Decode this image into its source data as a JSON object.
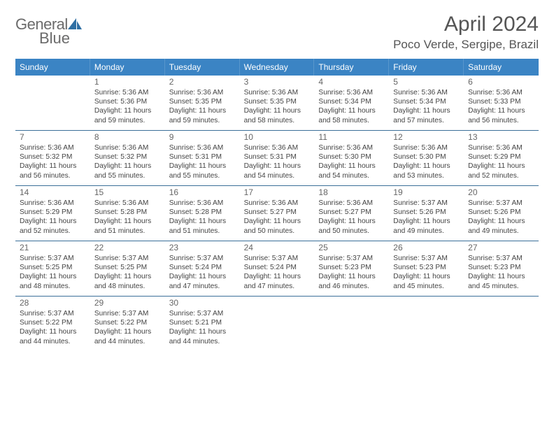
{
  "logo": {
    "general": "General",
    "blue": "Blue"
  },
  "title": "April 2024",
  "subtitle": "Poco Verde, Sergipe, Brazil",
  "colors": {
    "header_bg": "#3b84c4",
    "header_text": "#ffffff",
    "row_border": "#3b6f99",
    "text": "#444444",
    "title_text": "#555555",
    "logo_gray": "#6b6b6b",
    "logo_blue": "#2f6fa3"
  },
  "dow": [
    "Sunday",
    "Monday",
    "Tuesday",
    "Wednesday",
    "Thursday",
    "Friday",
    "Saturday"
  ],
  "days": [
    {
      "n": "1",
      "sr": "Sunrise: 5:36 AM",
      "ss": "Sunset: 5:36 PM",
      "d1": "Daylight: 11 hours",
      "d2": "and 59 minutes."
    },
    {
      "n": "2",
      "sr": "Sunrise: 5:36 AM",
      "ss": "Sunset: 5:35 PM",
      "d1": "Daylight: 11 hours",
      "d2": "and 59 minutes."
    },
    {
      "n": "3",
      "sr": "Sunrise: 5:36 AM",
      "ss": "Sunset: 5:35 PM",
      "d1": "Daylight: 11 hours",
      "d2": "and 58 minutes."
    },
    {
      "n": "4",
      "sr": "Sunrise: 5:36 AM",
      "ss": "Sunset: 5:34 PM",
      "d1": "Daylight: 11 hours",
      "d2": "and 58 minutes."
    },
    {
      "n": "5",
      "sr": "Sunrise: 5:36 AM",
      "ss": "Sunset: 5:34 PM",
      "d1": "Daylight: 11 hours",
      "d2": "and 57 minutes."
    },
    {
      "n": "6",
      "sr": "Sunrise: 5:36 AM",
      "ss": "Sunset: 5:33 PM",
      "d1": "Daylight: 11 hours",
      "d2": "and 56 minutes."
    },
    {
      "n": "7",
      "sr": "Sunrise: 5:36 AM",
      "ss": "Sunset: 5:32 PM",
      "d1": "Daylight: 11 hours",
      "d2": "and 56 minutes."
    },
    {
      "n": "8",
      "sr": "Sunrise: 5:36 AM",
      "ss": "Sunset: 5:32 PM",
      "d1": "Daylight: 11 hours",
      "d2": "and 55 minutes."
    },
    {
      "n": "9",
      "sr": "Sunrise: 5:36 AM",
      "ss": "Sunset: 5:31 PM",
      "d1": "Daylight: 11 hours",
      "d2": "and 55 minutes."
    },
    {
      "n": "10",
      "sr": "Sunrise: 5:36 AM",
      "ss": "Sunset: 5:31 PM",
      "d1": "Daylight: 11 hours",
      "d2": "and 54 minutes."
    },
    {
      "n": "11",
      "sr": "Sunrise: 5:36 AM",
      "ss": "Sunset: 5:30 PM",
      "d1": "Daylight: 11 hours",
      "d2": "and 54 minutes."
    },
    {
      "n": "12",
      "sr": "Sunrise: 5:36 AM",
      "ss": "Sunset: 5:30 PM",
      "d1": "Daylight: 11 hours",
      "d2": "and 53 minutes."
    },
    {
      "n": "13",
      "sr": "Sunrise: 5:36 AM",
      "ss": "Sunset: 5:29 PM",
      "d1": "Daylight: 11 hours",
      "d2": "and 52 minutes."
    },
    {
      "n": "14",
      "sr": "Sunrise: 5:36 AM",
      "ss": "Sunset: 5:29 PM",
      "d1": "Daylight: 11 hours",
      "d2": "and 52 minutes."
    },
    {
      "n": "15",
      "sr": "Sunrise: 5:36 AM",
      "ss": "Sunset: 5:28 PM",
      "d1": "Daylight: 11 hours",
      "d2": "and 51 minutes."
    },
    {
      "n": "16",
      "sr": "Sunrise: 5:36 AM",
      "ss": "Sunset: 5:28 PM",
      "d1": "Daylight: 11 hours",
      "d2": "and 51 minutes."
    },
    {
      "n": "17",
      "sr": "Sunrise: 5:36 AM",
      "ss": "Sunset: 5:27 PM",
      "d1": "Daylight: 11 hours",
      "d2": "and 50 minutes."
    },
    {
      "n": "18",
      "sr": "Sunrise: 5:36 AM",
      "ss": "Sunset: 5:27 PM",
      "d1": "Daylight: 11 hours",
      "d2": "and 50 minutes."
    },
    {
      "n": "19",
      "sr": "Sunrise: 5:37 AM",
      "ss": "Sunset: 5:26 PM",
      "d1": "Daylight: 11 hours",
      "d2": "and 49 minutes."
    },
    {
      "n": "20",
      "sr": "Sunrise: 5:37 AM",
      "ss": "Sunset: 5:26 PM",
      "d1": "Daylight: 11 hours",
      "d2": "and 49 minutes."
    },
    {
      "n": "21",
      "sr": "Sunrise: 5:37 AM",
      "ss": "Sunset: 5:25 PM",
      "d1": "Daylight: 11 hours",
      "d2": "and 48 minutes."
    },
    {
      "n": "22",
      "sr": "Sunrise: 5:37 AM",
      "ss": "Sunset: 5:25 PM",
      "d1": "Daylight: 11 hours",
      "d2": "and 48 minutes."
    },
    {
      "n": "23",
      "sr": "Sunrise: 5:37 AM",
      "ss": "Sunset: 5:24 PM",
      "d1": "Daylight: 11 hours",
      "d2": "and 47 minutes."
    },
    {
      "n": "24",
      "sr": "Sunrise: 5:37 AM",
      "ss": "Sunset: 5:24 PM",
      "d1": "Daylight: 11 hours",
      "d2": "and 47 minutes."
    },
    {
      "n": "25",
      "sr": "Sunrise: 5:37 AM",
      "ss": "Sunset: 5:23 PM",
      "d1": "Daylight: 11 hours",
      "d2": "and 46 minutes."
    },
    {
      "n": "26",
      "sr": "Sunrise: 5:37 AM",
      "ss": "Sunset: 5:23 PM",
      "d1": "Daylight: 11 hours",
      "d2": "and 45 minutes."
    },
    {
      "n": "27",
      "sr": "Sunrise: 5:37 AM",
      "ss": "Sunset: 5:23 PM",
      "d1": "Daylight: 11 hours",
      "d2": "and 45 minutes."
    },
    {
      "n": "28",
      "sr": "Sunrise: 5:37 AM",
      "ss": "Sunset: 5:22 PM",
      "d1": "Daylight: 11 hours",
      "d2": "and 44 minutes."
    },
    {
      "n": "29",
      "sr": "Sunrise: 5:37 AM",
      "ss": "Sunset: 5:22 PM",
      "d1": "Daylight: 11 hours",
      "d2": "and 44 minutes."
    },
    {
      "n": "30",
      "sr": "Sunrise: 5:37 AM",
      "ss": "Sunset: 5:21 PM",
      "d1": "Daylight: 11 hours",
      "d2": "and 44 minutes."
    }
  ],
  "first_dow_index": 1,
  "num_days": 30
}
